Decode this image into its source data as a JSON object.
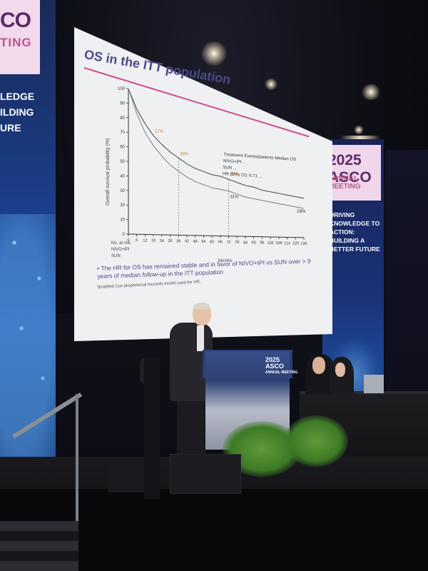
{
  "left_banner": {
    "logo_text": "CO",
    "logo_sub": "TING",
    "tagline": [
      "LEDGE",
      "ILDING",
      "URE"
    ]
  },
  "right_banner": {
    "logo_text": "2025 ASCO",
    "logo_sub": "ANNUAL MEETING",
    "tagline": "DRIVING KNOWLEDGE TO ACTION: BUILDING A BETTER FUTURE"
  },
  "podium": {
    "logo_line1": "2025",
    "logo_line2": "ASCO",
    "logo_line3": "ANNUAL MEETING"
  },
  "slide": {
    "title": "OS in the ITT population",
    "y_axis_label": "Overall survival probability (%)",
    "x_axis_label": "Months",
    "legend": {
      "header": "Treatment   Events/patients   Median OS",
      "rows": [
        "NIVO+IPI   ...",
        "SUN   ..."
      ],
      "hr": "HR (95% CI): 0.71 ..."
    },
    "risk_header": "No. at risk",
    "risk_rows": [
      "NIVO+IPI",
      "SUN"
    ],
    "bullet": "The HR for OS has remained stable and in favor of NIVO+IPI vs SUN over > 9 years of median follow-up in the ITT population",
    "footnote": "Stratified Cox proportional hazards model used for HR."
  },
  "chart_data": {
    "type": "line",
    "title": "OS in the ITT population",
    "xlabel": "Months",
    "ylabel": "Overall survival probability (%)",
    "xlim": [
      0,
      126
    ],
    "ylim": [
      0,
      100
    ],
    "x_ticks": [
      0,
      6,
      12,
      18,
      24,
      30,
      36,
      42,
      48,
      54,
      60,
      66,
      72,
      78,
      84,
      90,
      96,
      102,
      108,
      114,
      120,
      126
    ],
    "y_ticks": [
      0,
      10,
      20,
      30,
      40,
      50,
      60,
      70,
      80,
      90,
      100
    ],
    "x": [
      0,
      6,
      12,
      18,
      24,
      30,
      36,
      42,
      48,
      54,
      60,
      66,
      72,
      78,
      84,
      90,
      96,
      102,
      108,
      114,
      120,
      126
    ],
    "series": [
      {
        "name": "NIVO+IPI",
        "values": [
          100,
          86,
          76,
          68,
          62,
          57,
          53,
          49,
          46,
          44,
          42,
          41,
          39,
          37,
          35,
          34,
          32,
          31,
          30,
          29,
          28,
          27
        ]
      },
      {
        "name": "SUN",
        "values": [
          100,
          83,
          70,
          61,
          54,
          48,
          44,
          40,
          37,
          35,
          33,
          32,
          31,
          29,
          27,
          26,
          25,
          24,
          23,
          22,
          21,
          20
        ]
      }
    ],
    "annotations": [
      "39%",
      "31%",
      "37%",
      "57%",
      "29%"
    ],
    "legend": "top-right",
    "grid": false
  },
  "colors": {
    "series_1": "#555555",
    "series_2": "#888888",
    "accent_pink": "#d04a8a",
    "annot_orange": "#e08a2a"
  }
}
